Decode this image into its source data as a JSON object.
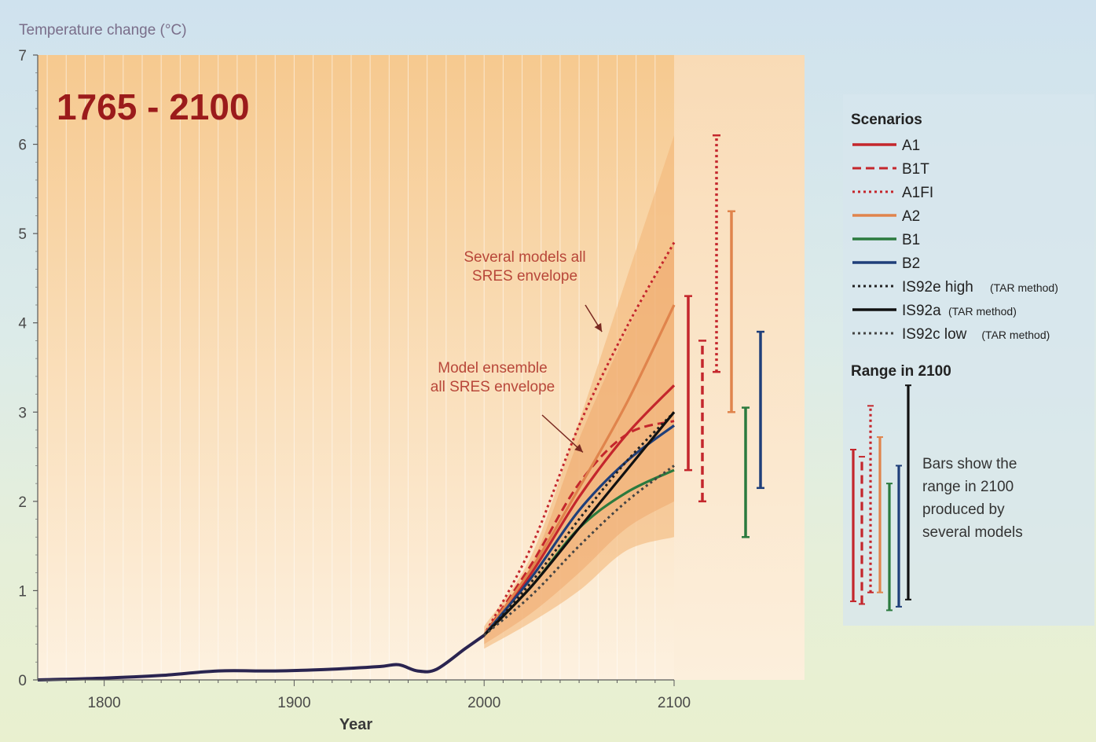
{
  "chart_data": {
    "type": "line",
    "title": "1765 - 2100",
    "ylabel": "Temperature change (°C)",
    "xlabel": "Year",
    "xlim": [
      1765,
      2100
    ],
    "ylim": [
      0,
      7
    ],
    "x_ticks": [
      1800,
      1900,
      2000,
      2100
    ],
    "y_ticks": [
      0,
      1,
      2,
      3,
      4,
      5,
      6,
      7
    ],
    "grid": "vertical",
    "history": {
      "x": [
        1765,
        1800,
        1830,
        1860,
        1890,
        1920,
        1945,
        1955,
        1965,
        1975,
        1990,
        2000
      ],
      "y": [
        0.0,
        0.02,
        0.05,
        0.1,
        0.1,
        0.12,
        0.15,
        0.17,
        0.1,
        0.12,
        0.35,
        0.5
      ]
    },
    "series": [
      {
        "name": "A1",
        "style": "solid",
        "color": "#c4262c",
        "x": [
          2000,
          2025,
          2050,
          2075,
          2100
        ],
        "y": [
          0.5,
          1.2,
          2.05,
          2.75,
          3.3
        ]
      },
      {
        "name": "B1T",
        "style": "dashed",
        "color": "#c4262c",
        "x": [
          2000,
          2025,
          2050,
          2075,
          2100
        ],
        "y": [
          0.5,
          1.3,
          2.2,
          2.75,
          2.9
        ]
      },
      {
        "name": "A1FI",
        "style": "dotted",
        "color": "#c4262c",
        "x": [
          2000,
          2025,
          2050,
          2075,
          2100
        ],
        "y": [
          0.5,
          1.5,
          2.85,
          3.95,
          4.9
        ]
      },
      {
        "name": "A2",
        "style": "solid",
        "color": "#e0844c",
        "x": [
          2000,
          2025,
          2050,
          2075,
          2100
        ],
        "y": [
          0.5,
          1.25,
          2.15,
          3.1,
          4.2
        ]
      },
      {
        "name": "B1",
        "style": "solid",
        "color": "#2b7a3e",
        "x": [
          2000,
          2025,
          2050,
          2075,
          2100
        ],
        "y": [
          0.5,
          1.05,
          1.7,
          2.1,
          2.35
        ]
      },
      {
        "name": "B2",
        "style": "solid",
        "color": "#1f3f7a",
        "x": [
          2000,
          2025,
          2050,
          2075,
          2100
        ],
        "y": [
          0.5,
          1.15,
          1.9,
          2.45,
          2.85
        ]
      },
      {
        "name": "IS92e high",
        "style": "dotted",
        "color": "#222222",
        "x": [
          2000,
          2025,
          2050,
          2075,
          2100
        ],
        "y": [
          0.5,
          1.1,
          1.8,
          2.45,
          3.0
        ]
      },
      {
        "name": "IS92a",
        "style": "solid",
        "color": "#111111",
        "x": [
          2000,
          2025,
          2050,
          2075,
          2100
        ],
        "y": [
          0.5,
          1.05,
          1.7,
          2.35,
          3.0
        ]
      },
      {
        "name": "IS92c low",
        "style": "dotted",
        "color": "#444444",
        "x": [
          2000,
          2025,
          2050,
          2075,
          2100
        ],
        "y": [
          0.5,
          0.95,
          1.5,
          2.0,
          2.4
        ]
      }
    ],
    "envelopes": {
      "several_models": {
        "x": [
          2000,
          2025,
          2050,
          2075,
          2100
        ],
        "upper": [
          0.6,
          1.4,
          2.9,
          4.5,
          6.1
        ],
        "lower": [
          0.35,
          0.65,
          1.0,
          1.45,
          1.6
        ]
      },
      "model_ensemble": {
        "x": [
          2000,
          2025,
          2050,
          2075,
          2100
        ],
        "upper": [
          0.55,
          1.3,
          2.7,
          3.9,
          4.9
        ],
        "lower": [
          0.4,
          0.75,
          1.2,
          1.7,
          2.0
        ]
      }
    },
    "annotations": [
      {
        "text_lines": [
          "Several models all",
          "SRES envelope"
        ],
        "points_to": [
          2062,
          3.9
        ],
        "color": "#b8473a"
      },
      {
        "text_lines": [
          "Model ensemble",
          "all SRES envelope"
        ],
        "points_to": [
          2052,
          2.55
        ],
        "color": "#b8473a"
      }
    ],
    "range_bars_2100": [
      {
        "name": "A1",
        "style": "solid",
        "color": "#c4262c",
        "min": 2.35,
        "max": 4.3
      },
      {
        "name": "B1T",
        "style": "dashed",
        "color": "#c4262c",
        "min": 2.0,
        "max": 3.8
      },
      {
        "name": "A1FI",
        "style": "dotted",
        "color": "#c4262c",
        "min": 3.45,
        "max": 6.1
      },
      {
        "name": "A2",
        "style": "solid",
        "color": "#e0844c",
        "min": 3.0,
        "max": 5.25
      },
      {
        "name": "B1",
        "style": "solid",
        "color": "#2b7a3e",
        "min": 1.6,
        "max": 3.05
      },
      {
        "name": "B2",
        "style": "solid",
        "color": "#1f3f7a",
        "min": 2.15,
        "max": 3.9
      }
    ],
    "legend": {
      "placement": "right",
      "title": "Scenarios",
      "entries": [
        {
          "label": "A1",
          "note": ""
        },
        {
          "label": "B1T",
          "note": ""
        },
        {
          "label": "A1FI",
          "note": ""
        },
        {
          "label": "A2",
          "note": ""
        },
        {
          "label": "B1",
          "note": ""
        },
        {
          "label": "B2",
          "note": ""
        },
        {
          "label": "IS92e high",
          "note": "(TAR method)"
        },
        {
          "label": "IS92a",
          "note": "(TAR method)"
        },
        {
          "label": "IS92c low",
          "note": "(TAR method)"
        }
      ],
      "range_title": "Range in 2100",
      "range_note_lines": [
        "Bars show the",
        "range in 2100",
        "produced by",
        "several models"
      ],
      "range_illustration": [
        {
          "style": "solid",
          "color": "#c4262c",
          "min": 0.88,
          "max": 2.58
        },
        {
          "style": "dashed",
          "color": "#c4262c",
          "min": 0.85,
          "max": 2.5
        },
        {
          "style": "dotted",
          "color": "#c4262c",
          "min": 0.98,
          "max": 3.07
        },
        {
          "style": "solid",
          "color": "#e0844c",
          "min": 0.98,
          "max": 2.72
        },
        {
          "style": "solid",
          "color": "#2b7a3e",
          "min": 0.78,
          "max": 2.2
        },
        {
          "style": "solid",
          "color": "#1f3f7a",
          "min": 0.82,
          "max": 2.4
        },
        {
          "style": "solid",
          "color": "#111111",
          "min": 0.9,
          "max": 3.3
        }
      ]
    }
  }
}
